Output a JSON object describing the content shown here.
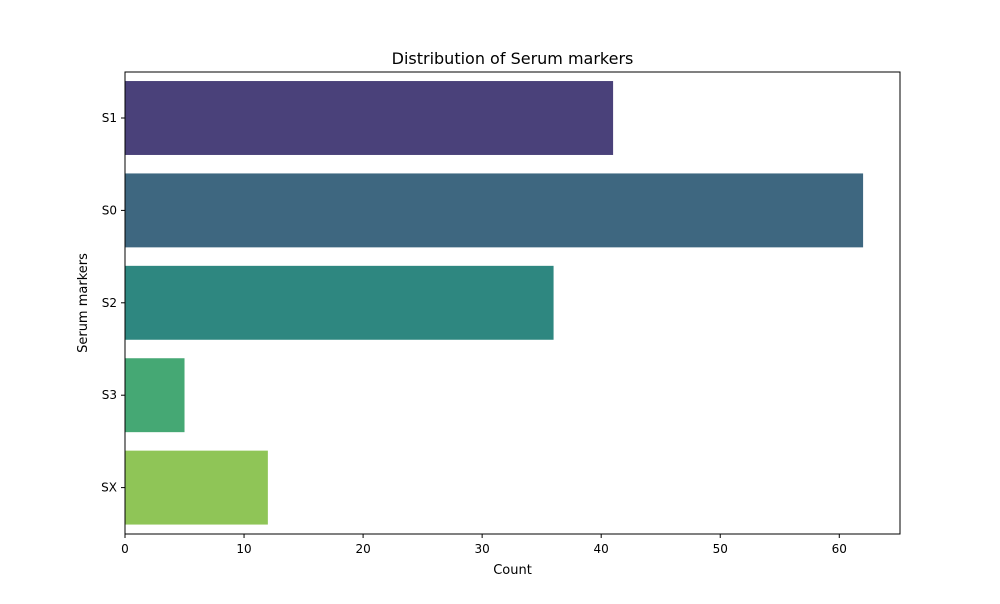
{
  "chart_data": {
    "type": "bar",
    "orientation": "horizontal",
    "title": "Distribution of Serum markers",
    "xlabel": "Count",
    "ylabel": "Serum markers",
    "categories": [
      "S1",
      "S0",
      "S2",
      "S3",
      "SX"
    ],
    "values": [
      41,
      62,
      36,
      5,
      12
    ],
    "colors": [
      "#4a417a",
      "#3e6780",
      "#2e8780",
      "#45a874",
      "#8fc557"
    ],
    "xlim": [
      0,
      65.1
    ],
    "xticks": [
      0,
      10,
      20,
      30,
      40,
      50,
      60
    ],
    "grid": false
  }
}
